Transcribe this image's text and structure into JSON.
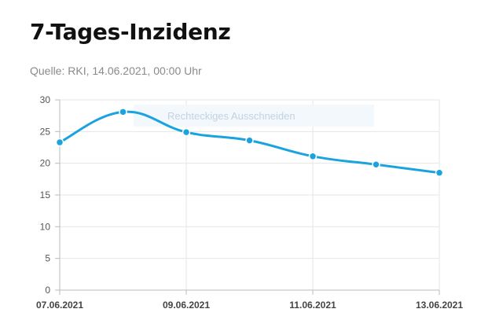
{
  "header": {
    "title": "7-Tages-Inzidenz",
    "source": "Quelle: RKI, 14.06.2021, 00:00 Uhr"
  },
  "overlay": {
    "label": "Rechteckiges Ausschneiden"
  },
  "colors": {
    "line": "#1aa3de",
    "grid": "#e6e6e6",
    "axis": "#bbbbbb"
  },
  "chart_data": {
    "type": "line",
    "x": [
      "07.06.2021",
      "08.06.2021",
      "09.06.2021",
      "10.06.2021",
      "11.06.2021",
      "12.06.2021",
      "13.06.2021"
    ],
    "x_tick_labels": [
      "07.06.2021",
      "09.06.2021",
      "11.06.2021",
      "13.06.2021"
    ],
    "series": [
      {
        "values": [
          23.3,
          28.1,
          24.9,
          23.6,
          21.1,
          19.8,
          18.5
        ]
      }
    ],
    "ylim": [
      0,
      30
    ],
    "y_ticks": [
      0,
      5,
      10,
      15,
      20,
      25,
      30
    ],
    "grid": true,
    "xlabel": "",
    "ylabel": ""
  }
}
